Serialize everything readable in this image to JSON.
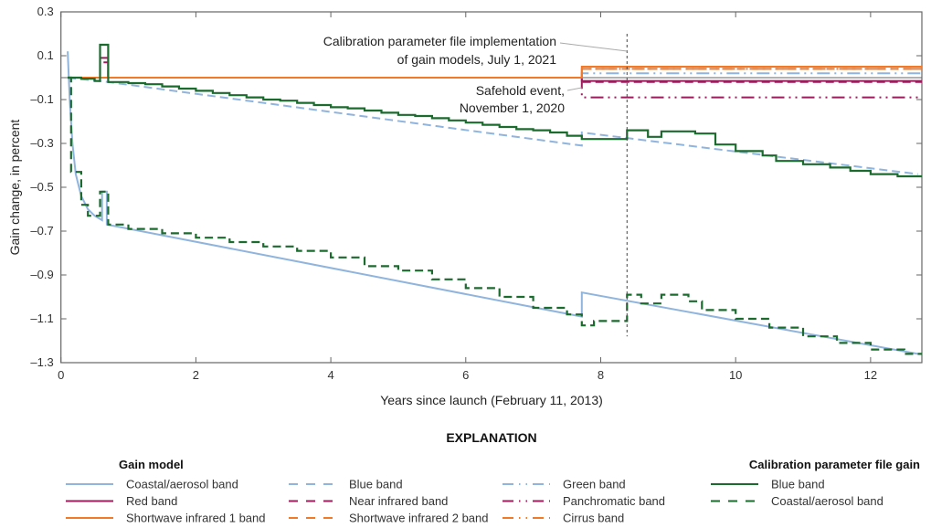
{
  "chart_data": {
    "type": "line",
    "xlabel": "Years since launch (February 11, 2013)",
    "ylabel": "Gain change, in percent",
    "xlim": [
      0,
      12.76
    ],
    "ylim": [
      -1.3,
      0.3
    ],
    "xticks": [
      0,
      2,
      4,
      6,
      8,
      10,
      12
    ],
    "yticks": [
      0.3,
      0.1,
      -0.1,
      -0.3,
      -0.5,
      -0.7,
      -0.9,
      -1.1,
      -1.3
    ],
    "ytick_labels": [
      "0.3",
      "0.1",
      "–0.1",
      "–0.3",
      "–0.5",
      "–0.7",
      "–0.9",
      "–1.1",
      "–1.3"
    ],
    "grid": false,
    "zero_line": true,
    "legend_title": "EXPLANATION",
    "legend_placement": "bottom",
    "legend_groups": [
      "Gain model",
      "Calibration parameter file gain"
    ],
    "annotations": [
      {
        "lines": [
          "Calibration parameter file implementation",
          "of gain models, July 1, 2021"
        ],
        "x": 8.39,
        "y": 0.1
      },
      {
        "lines": [
          "Safehold event,",
          "November 1, 2020"
        ],
        "x": 7.72,
        "y": -0.05
      }
    ],
    "vertical_marker": {
      "x": 8.39,
      "y_range": [
        0.2,
        -1.18
      ],
      "style": "dotted"
    },
    "series": [
      {
        "name": "Coastal/aerosol band",
        "group": 0,
        "color": "#8fb4de",
        "dash": "solid",
        "step": false,
        "points": [
          [
            0.1,
            0.12
          ],
          [
            0.13,
            -0.1
          ],
          [
            0.17,
            -0.3
          ],
          [
            0.22,
            -0.44
          ],
          [
            0.3,
            -0.54
          ],
          [
            0.4,
            -0.6
          ],
          [
            0.5,
            -0.63
          ],
          [
            0.61,
            -0.65
          ],
          [
            0.61,
            -0.52
          ],
          [
            0.68,
            -0.52
          ],
          [
            0.68,
            -0.67
          ],
          [
            7.72,
            -1.09
          ],
          [
            7.72,
            -0.98
          ],
          [
            12.7,
            -1.26
          ]
        ]
      },
      {
        "name": "Blue band",
        "group": 0,
        "color": "#8fb4de",
        "dash": "dashed",
        "step": false,
        "points": [
          [
            0.1,
            0
          ],
          [
            0.7,
            -0.02
          ],
          [
            7.72,
            -0.31
          ],
          [
            7.72,
            -0.25
          ],
          [
            12.7,
            -0.44
          ]
        ]
      },
      {
        "name": "Green band",
        "group": 0,
        "color": "#8fb4de",
        "dash": "dashdotdot",
        "step": false,
        "points": [
          [
            0.1,
            0
          ],
          [
            7.72,
            0
          ],
          [
            7.72,
            0.02
          ],
          [
            12.76,
            0.02
          ]
        ]
      },
      {
        "name": "Red band",
        "group": 0,
        "color": "#9c1c5c",
        "dash": "solid",
        "step": false,
        "points": [
          [
            0.1,
            0
          ],
          [
            0.58,
            0
          ],
          [
            0.58,
            0.09
          ],
          [
            0.7,
            0.09
          ],
          [
            0.7,
            0
          ],
          [
            7.72,
            0
          ],
          [
            7.72,
            -0.015
          ],
          [
            12.76,
            -0.015
          ]
        ]
      },
      {
        "name": "Near infrared band",
        "group": 0,
        "color": "#9c1c5c",
        "dash": "dashed",
        "step": false,
        "points": [
          [
            0.1,
            0
          ],
          [
            0.58,
            0
          ],
          [
            0.58,
            0.07
          ],
          [
            0.7,
            0.07
          ],
          [
            0.7,
            0
          ],
          [
            7.72,
            0
          ],
          [
            7.72,
            -0.02
          ],
          [
            12.76,
            -0.02
          ]
        ]
      },
      {
        "name": "Panchromatic band",
        "group": 0,
        "color": "#9c1c5c",
        "dash": "dashdotdot",
        "step": false,
        "points": [
          [
            0.1,
            0
          ],
          [
            7.72,
            0
          ],
          [
            7.72,
            -0.09
          ],
          [
            12.76,
            -0.09
          ]
        ]
      },
      {
        "name": "Shortwave infrared 1 band",
        "group": 0,
        "color": "#f07a2a",
        "dash": "solid",
        "step": false,
        "points": [
          [
            0.1,
            0
          ],
          [
            7.72,
            0
          ],
          [
            7.72,
            0.05
          ],
          [
            12.76,
            0.05
          ]
        ]
      },
      {
        "name": "Shortwave infrared 2 band",
        "group": 0,
        "color": "#f07a2a",
        "dash": "dashed",
        "step": false,
        "points": [
          [
            0.1,
            0
          ],
          [
            7.72,
            0
          ],
          [
            7.72,
            0.04
          ],
          [
            12.76,
            0.04
          ]
        ]
      },
      {
        "name": "Cirrus band",
        "group": 0,
        "color": "#f07a2a",
        "dash": "dashdotdot",
        "step": false,
        "points": [
          [
            0.1,
            0
          ],
          [
            7.72,
            0
          ],
          [
            7.72,
            0.04
          ],
          [
            12.76,
            0.04
          ]
        ]
      },
      {
        "name": "Blue band",
        "group": 1,
        "color": "#1b6b2f",
        "dash": "solid",
        "step": true,
        "points": [
          [
            0.1,
            0
          ],
          [
            0.3,
            -0.005
          ],
          [
            0.5,
            -0.015
          ],
          [
            0.58,
            0.15
          ],
          [
            0.7,
            -0.02
          ],
          [
            1,
            -0.025
          ],
          [
            1.25,
            -0.03
          ],
          [
            1.5,
            -0.04
          ],
          [
            1.75,
            -0.05
          ],
          [
            2,
            -0.06
          ],
          [
            2.25,
            -0.07
          ],
          [
            2.5,
            -0.08
          ],
          [
            2.75,
            -0.09
          ],
          [
            3,
            -0.1
          ],
          [
            3.25,
            -0.105
          ],
          [
            3.5,
            -0.115
          ],
          [
            3.75,
            -0.125
          ],
          [
            4,
            -0.135
          ],
          [
            4.25,
            -0.14
          ],
          [
            4.5,
            -0.15
          ],
          [
            4.75,
            -0.16
          ],
          [
            5,
            -0.17
          ],
          [
            5.25,
            -0.175
          ],
          [
            5.5,
            -0.185
          ],
          [
            5.75,
            -0.195
          ],
          [
            6,
            -0.205
          ],
          [
            6.25,
            -0.215
          ],
          [
            6.5,
            -0.225
          ],
          [
            6.75,
            -0.235
          ],
          [
            7,
            -0.24
          ],
          [
            7.25,
            -0.25
          ],
          [
            7.5,
            -0.265
          ],
          [
            7.72,
            -0.28
          ],
          [
            8.39,
            -0.24
          ],
          [
            8.7,
            -0.27
          ],
          [
            8.9,
            -0.245
          ],
          [
            9.4,
            -0.255
          ],
          [
            9.7,
            -0.305
          ],
          [
            10,
            -0.335
          ],
          [
            10.4,
            -0.355
          ],
          [
            10.6,
            -0.38
          ],
          [
            11,
            -0.395
          ],
          [
            11.4,
            -0.41
          ],
          [
            11.7,
            -0.425
          ],
          [
            12,
            -0.44
          ],
          [
            12.4,
            -0.45
          ],
          [
            12.76,
            -0.45
          ]
        ]
      },
      {
        "name": "Coastal/aerosol band",
        "group": 1,
        "color": "#1b6b2f",
        "dash": "dashed",
        "step": true,
        "points": [
          [
            0.1,
            0
          ],
          [
            0.15,
            -0.43
          ],
          [
            0.3,
            -0.58
          ],
          [
            0.4,
            -0.63
          ],
          [
            0.58,
            -0.52
          ],
          [
            0.7,
            -0.67
          ],
          [
            1,
            -0.69
          ],
          [
            1.5,
            -0.71
          ],
          [
            2,
            -0.73
          ],
          [
            2.5,
            -0.75
          ],
          [
            3,
            -0.77
          ],
          [
            3.5,
            -0.79
          ],
          [
            4,
            -0.82
          ],
          [
            4.5,
            -0.86
          ],
          [
            5,
            -0.88
          ],
          [
            5.5,
            -0.92
          ],
          [
            6,
            -0.96
          ],
          [
            6.5,
            -1.0
          ],
          [
            7,
            -1.05
          ],
          [
            7.5,
            -1.08
          ],
          [
            7.72,
            -1.13
          ],
          [
            7.9,
            -1.11
          ],
          [
            8.39,
            -0.99
          ],
          [
            8.6,
            -1.03
          ],
          [
            8.9,
            -0.99
          ],
          [
            9.3,
            -1.02
          ],
          [
            9.5,
            -1.06
          ],
          [
            10,
            -1.1
          ],
          [
            10.5,
            -1.14
          ],
          [
            11,
            -1.18
          ],
          [
            11.5,
            -1.21
          ],
          [
            12,
            -1.24
          ],
          [
            12.5,
            -1.26
          ],
          [
            12.76,
            -1.26
          ]
        ]
      }
    ]
  }
}
